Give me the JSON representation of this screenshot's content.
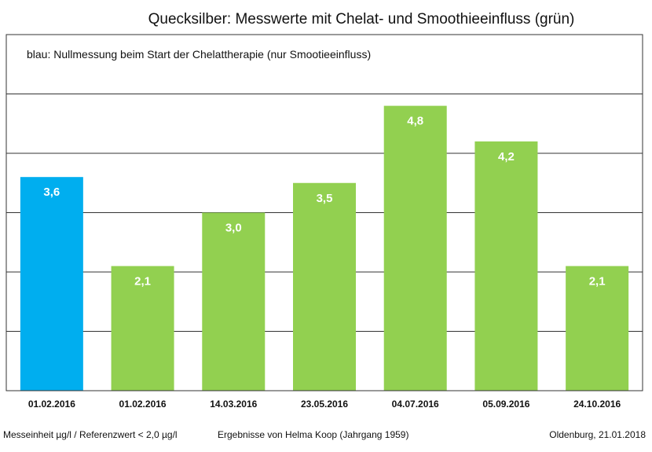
{
  "chart_data": {
    "type": "bar",
    "title": "Quecksilber: Messwerte mit Chelat- und Smoothieeinfluss (grün)",
    "annotation": "blau: Nullmessung beim Start der Chelattherapie (nur Smootieeinfluss)",
    "categories": [
      "01.02.2016",
      "01.02.2016",
      "14.03.2016",
      "23.05.2016",
      "04.07.2016",
      "05.09.2016",
      "24.10.2016"
    ],
    "values": [
      3.6,
      2.1,
      3.0,
      3.5,
      4.8,
      4.2,
      2.1
    ],
    "value_labels": [
      "3,6",
      "2,1",
      "3,0",
      "3,5",
      "4,8",
      "4,2",
      "2,1"
    ],
    "bar_colors": [
      "#00aeef",
      "#92d050",
      "#92d050",
      "#92d050",
      "#92d050",
      "#92d050",
      "#92d050"
    ],
    "ylim": [
      0,
      6
    ],
    "grid": true,
    "xlabel": "",
    "ylabel": ""
  },
  "footer": {
    "left": "Messeinheit µg/l / Referenzwert < 2,0 µg/l",
    "center": "Ergebnisse von Helma Koop (Jahrgang 1959)",
    "right": "Oldenburg, 21.01.2018"
  }
}
